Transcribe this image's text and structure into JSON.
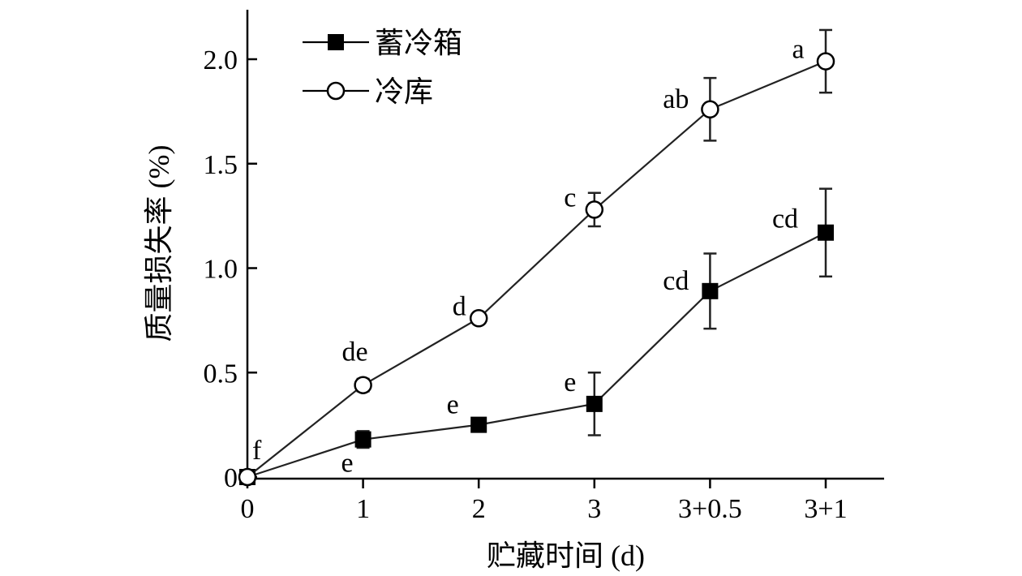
{
  "chart_data": {
    "type": "line",
    "categories": [
      "0",
      "1",
      "2",
      "3",
      "3+0.5",
      "3+1"
    ],
    "xlabel": "贮藏时间 (d)",
    "ylabel": "质量损失率 (%)",
    "ylim": [
      0,
      2.2
    ],
    "yticks": [
      {
        "value": 0,
        "label": "0"
      },
      {
        "value": 0.5,
        "label": "0.5"
      },
      {
        "value": 1.0,
        "label": "1.0"
      },
      {
        "value": 1.5,
        "label": "1.5"
      },
      {
        "value": 2.0,
        "label": "2.0"
      }
    ],
    "legend_position": "top-left",
    "series": [
      {
        "name": "蓄冷箱",
        "marker": "filled-square",
        "color": "#000000",
        "values": [
          0,
          0.18,
          0.25,
          0.35,
          0.89,
          1.17
        ],
        "errors": [
          0,
          0.04,
          0.02,
          0.15,
          0.18,
          0.21
        ],
        "labels": [
          "f",
          "e",
          "e",
          "e",
          "cd",
          "cd"
        ],
        "label_side": [
          "above",
          "below",
          "above",
          "above",
          "left",
          "above"
        ]
      },
      {
        "name": "冷库",
        "marker": "open-circle",
        "color": "#000000",
        "values": [
          0,
          0.44,
          0.76,
          1.28,
          1.76,
          1.99
        ],
        "errors": [
          0,
          0.03,
          0.02,
          0.08,
          0.15,
          0.15
        ],
        "labels": [
          "",
          "de",
          "d",
          "c",
          "ab",
          "a"
        ],
        "label_side": [
          "above",
          "above",
          "above",
          "above",
          "left",
          "above"
        ]
      }
    ]
  }
}
